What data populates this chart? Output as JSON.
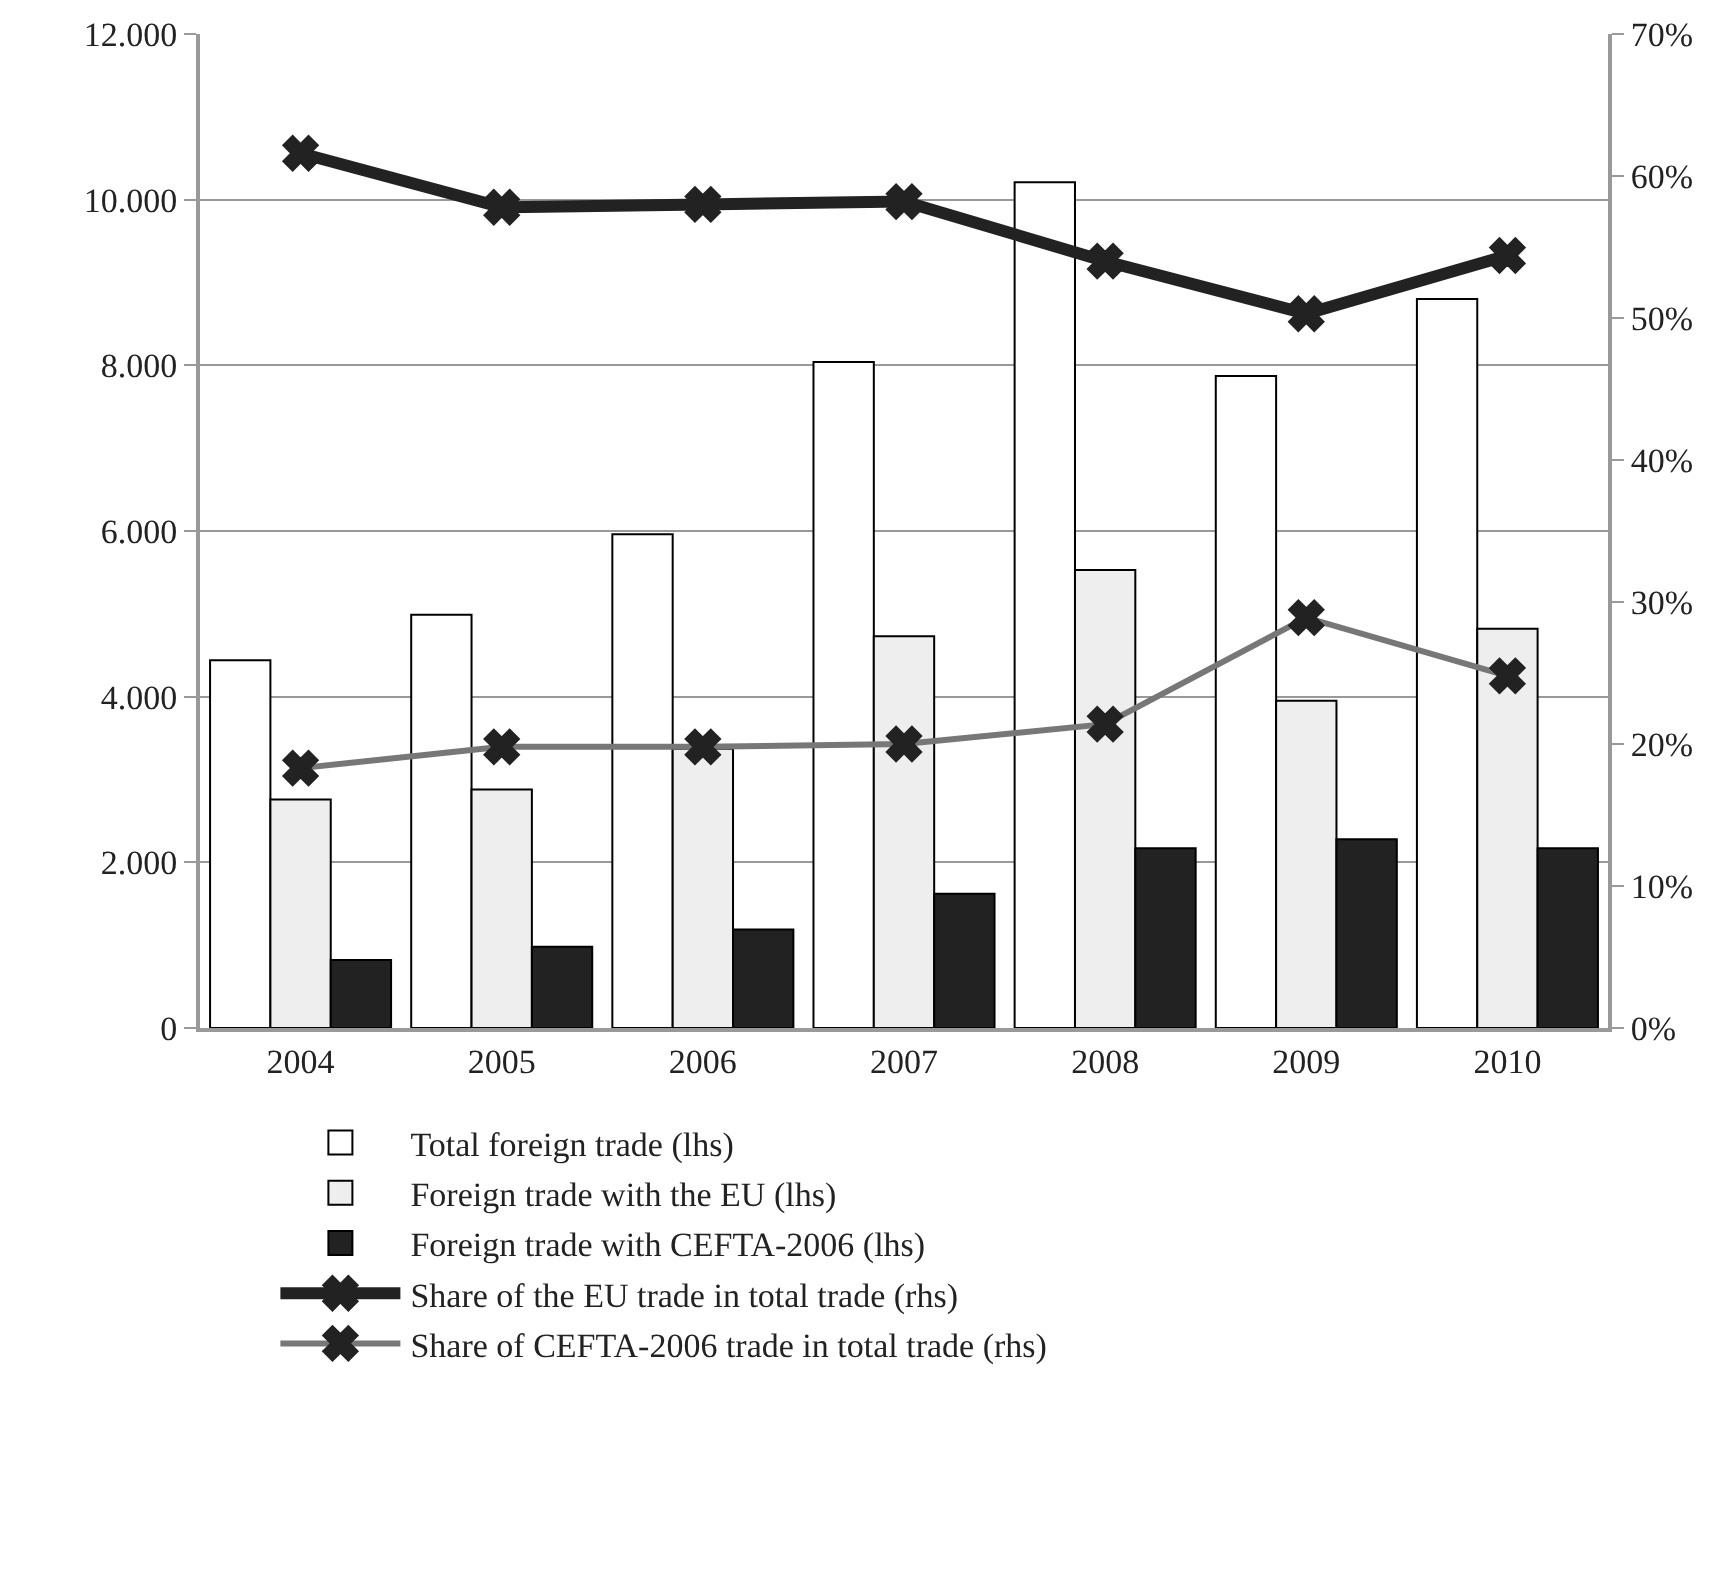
{
  "chart_data": {
    "type": "bar",
    "categories": [
      "2004",
      "2005",
      "2006",
      "2007",
      "2008",
      "2009",
      "2010"
    ],
    "series": [
      {
        "name": "Total foreign trade (lhs)",
        "color": "#ffffff",
        "values": [
          4440,
          4990,
          5960,
          8040,
          10210,
          7870,
          8800
        ]
      },
      {
        "name": "Foreign trade with the EU (lhs)",
        "color": "#eeeeee",
        "values": [
          2760,
          2880,
          3370,
          4730,
          5530,
          3950,
          4820
        ]
      },
      {
        "name": "Foreign trade with CEFTA-2006 (lhs)",
        "color": "#222222",
        "values": [
          820,
          980,
          1190,
          1620,
          2170,
          2280,
          2170
        ]
      },
      {
        "name": "Share of the EU trade in total trade (rhs)",
        "type": "line",
        "axis": "y2",
        "color": "#222222",
        "marker": "cross",
        "values": [
          61.6,
          57.8,
          58.0,
          58.2,
          54.0,
          50.3,
          54.4
        ]
      },
      {
        "name": "Share of CEFTA-2006 trade in total trade (rhs)",
        "type": "line",
        "axis": "y2",
        "color": "#777777",
        "marker": "cross",
        "values": [
          18.3,
          19.8,
          19.8,
          20.0,
          21.4,
          28.9,
          24.8
        ]
      }
    ],
    "ylim": [
      0,
      12000
    ],
    "yticks": [
      0,
      {
        "value": 2000,
        "label": "2.000"
      },
      {
        "value": 4000,
        "label": "4.000"
      },
      {
        "value": 6000,
        "label": "6.000"
      },
      {
        "value": 8000,
        "label": "8.000"
      },
      {
        "value": 10000,
        "label": "10.000"
      },
      {
        "value": 12000,
        "label": "12.000"
      }
    ],
    "y2lim": [
      0,
      70
    ],
    "y2ticks": [
      {
        "value": 0,
        "label": "0%"
      },
      {
        "value": 10,
        "label": "10%"
      },
      {
        "value": 20,
        "label": "20%"
      },
      {
        "value": 30,
        "label": "30%"
      },
      {
        "value": 40,
        "label": "40%"
      },
      {
        "value": 50,
        "label": "50%"
      },
      {
        "value": 60,
        "label": "60%"
      },
      {
        "value": 70,
        "label": "70%"
      }
    ],
    "grid": "y",
    "legend": "bottom"
  }
}
